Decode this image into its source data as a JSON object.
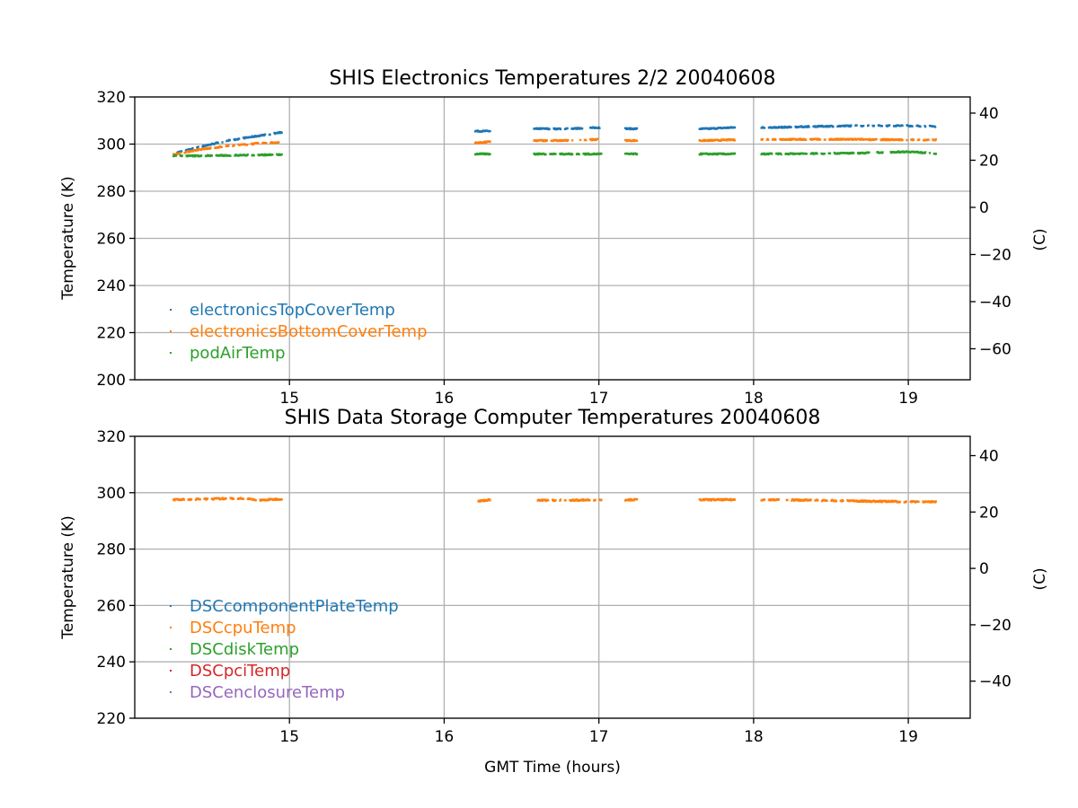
{
  "chart_data": [
    {
      "type": "scatter",
      "title": "SHIS Electronics Temperatures 2/2 20040608",
      "xlabel": "",
      "ylabel": "Temperature (K)",
      "y2label": "(C)",
      "xlim": [
        14.0,
        19.4
      ],
      "ylim": [
        200,
        320
      ],
      "xticks": [
        15,
        16,
        17,
        18,
        19
      ],
      "yticks": [
        200,
        220,
        240,
        260,
        280,
        300,
        320
      ],
      "y2ticks": [
        40,
        20,
        0,
        -20,
        -40,
        -60
      ],
      "y2ticklabels": [
        "40",
        "20",
        "0",
        "−20",
        "−40",
        "−60"
      ],
      "grid": true,
      "legend_position": "lower-left",
      "segments": [
        [
          14.25,
          14.95
        ],
        [
          16.2,
          16.3
        ],
        [
          16.58,
          17.02
        ],
        [
          17.17,
          17.25
        ],
        [
          17.65,
          17.88
        ],
        [
          18.05,
          19.18
        ]
      ],
      "series": [
        {
          "name": "electronicsTopCoverTemp",
          "color": "#1f77b4",
          "x": [
            14.25,
            14.4,
            14.6,
            14.8,
            14.95,
            16.2,
            16.3,
            16.6,
            16.8,
            17.0,
            17.2,
            17.7,
            17.85,
            18.1,
            18.4,
            18.7,
            19.0,
            19.18
          ],
          "y": [
            296,
            298.5,
            301.5,
            303.5,
            305,
            305.5,
            305.5,
            306.5,
            306.5,
            307,
            306.5,
            306.5,
            307,
            307,
            307.5,
            307.8,
            307.8,
            307.5
          ]
        },
        {
          "name": "electronicsBottomCoverTemp",
          "color": "#ff7f0e",
          "x": [
            14.25,
            14.4,
            14.6,
            14.8,
            14.95,
            16.2,
            16.3,
            16.6,
            16.8,
            17.0,
            17.2,
            17.7,
            17.85,
            18.1,
            18.4,
            18.7,
            19.0,
            19.18
          ],
          "y": [
            295.5,
            297.5,
            299.2,
            300.3,
            300.8,
            300.5,
            301,
            301.5,
            301.5,
            302,
            301.5,
            301.5,
            301.8,
            302,
            302,
            302,
            301.8,
            301.8
          ]
        },
        {
          "name": "podAirTemp",
          "color": "#2ca02c",
          "x": [
            14.25,
            14.4,
            14.6,
            14.8,
            14.95,
            16.2,
            16.3,
            16.6,
            16.8,
            17.0,
            17.2,
            17.7,
            17.85,
            18.1,
            18.4,
            18.7,
            19.0,
            19.18
          ],
          "y": [
            295,
            295,
            295.2,
            295.4,
            295.5,
            295.8,
            295.8,
            295.8,
            295.8,
            295.8,
            295.8,
            295.8,
            295.8,
            295.8,
            296,
            296.2,
            296.8,
            296
          ]
        }
      ]
    },
    {
      "type": "scatter",
      "title": "SHIS Data Storage Computer Temperatures 20040608",
      "xlabel": "GMT Time (hours)",
      "ylabel": "Temperature (K)",
      "y2label": "(C)",
      "xlim": [
        14.0,
        19.4
      ],
      "ylim": [
        220,
        320
      ],
      "xticks": [
        15,
        16,
        17,
        18,
        19
      ],
      "yticks": [
        220,
        240,
        260,
        280,
        300,
        320
      ],
      "y2ticks": [
        40,
        20,
        0,
        -20,
        -40
      ],
      "y2ticklabels": [
        "40",
        "20",
        "0",
        "−20",
        "−40"
      ],
      "grid": true,
      "legend_position": "lower-left",
      "segments": [
        [
          14.25,
          14.95
        ],
        [
          16.22,
          16.3
        ],
        [
          16.58,
          17.02
        ],
        [
          17.17,
          17.25
        ],
        [
          17.65,
          17.88
        ],
        [
          18.05,
          19.18
        ]
      ],
      "series": [
        {
          "name": "DSCcomponentPlateTemp",
          "color": "#1f77b4",
          "x": [],
          "y": []
        },
        {
          "name": "DSCcpuTemp",
          "color": "#ff7f0e",
          "x": [
            14.25,
            14.5,
            14.7,
            14.8,
            14.95,
            16.22,
            16.3,
            16.6,
            16.8,
            17.0,
            17.2,
            17.7,
            17.85,
            18.1,
            18.4,
            18.7,
            19.0,
            19.18
          ],
          "y": [
            297.5,
            297.8,
            298,
            297.3,
            297.8,
            297,
            297.5,
            297.3,
            297.3,
            297.5,
            297.5,
            297.5,
            297.5,
            297.5,
            297.3,
            297,
            296.8,
            296.8
          ]
        },
        {
          "name": "DSCdiskTemp",
          "color": "#2ca02c",
          "x": [],
          "y": []
        },
        {
          "name": "DSCpciTemp",
          "color": "#d62728",
          "x": [],
          "y": []
        },
        {
          "name": "DSCenclosureTemp",
          "color": "#9467bd",
          "x": [],
          "y": []
        }
      ]
    }
  ]
}
